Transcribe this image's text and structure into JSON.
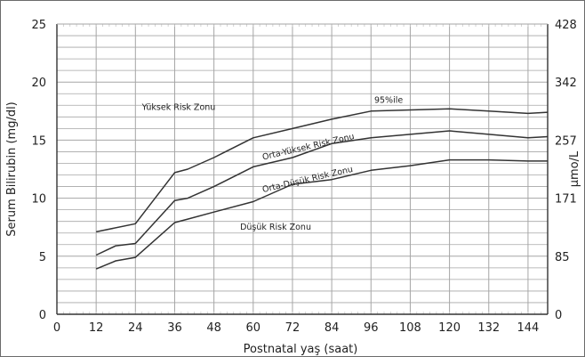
{
  "chart_data": {
    "type": "line",
    "xlabel": "Postnatal yaş (saat)",
    "ylabel": "Serum Bilirubin (mg/dl)",
    "y2label": "μmo/L",
    "xlim": [
      0,
      150
    ],
    "ylim": [
      0,
      25
    ],
    "x_ticks": [
      "0",
      "12",
      "24",
      "36",
      "48",
      "60",
      "72",
      "84",
      "96",
      "108",
      "120",
      "132",
      "144"
    ],
    "y_ticks": [
      "0",
      "5",
      "10",
      "15",
      "20",
      "25"
    ],
    "y2_ticks": [
      "0",
      "85",
      "171",
      "257",
      "342",
      "428"
    ],
    "grid": true,
    "series": [
      {
        "name": "95%ile",
        "x": [
          12,
          24,
          36,
          40,
          48,
          60,
          72,
          84,
          96,
          108,
          120,
          132,
          144,
          150
        ],
        "y": [
          7.1,
          7.8,
          12.2,
          12.5,
          13.5,
          15.2,
          16.0,
          16.8,
          17.5,
          17.6,
          17.7,
          17.5,
          17.3,
          17.4
        ]
      },
      {
        "name": "Orta-Yüksek Risk Zonu",
        "x": [
          12,
          18,
          24,
          36,
          40,
          48,
          60,
          72,
          84,
          96,
          108,
          120,
          132,
          144,
          150
        ],
        "y": [
          5.1,
          5.9,
          6.1,
          9.8,
          10.0,
          11.0,
          12.7,
          13.5,
          14.7,
          15.2,
          15.5,
          15.8,
          15.5,
          15.2,
          15.3
        ]
      },
      {
        "name": "Orta-Düşük Risk Zonu",
        "x": [
          12,
          18,
          24,
          36,
          40,
          48,
          60,
          72,
          84,
          96,
          108,
          120,
          132,
          144,
          150
        ],
        "y": [
          3.9,
          4.6,
          4.9,
          7.9,
          8.2,
          8.8,
          9.7,
          11.2,
          11.6,
          12.4,
          12.8,
          13.3,
          13.3,
          13.2,
          13.2
        ]
      }
    ],
    "annotations": [
      {
        "text": "Yüksek Risk Zonu",
        "x": 26,
        "y": 17.6
      },
      {
        "text": "95%ile",
        "x": 97,
        "y": 18.2
      },
      {
        "text": "Orta-Yüksek Risk Zonu",
        "x": 63,
        "y": 13.3
      },
      {
        "text": "Orta-Düşük Risk Zonu",
        "x": 63,
        "y": 10.5
      },
      {
        "text": "Düşük Risk Zonu",
        "x": 56,
        "y": 7.3
      }
    ],
    "colors": {
      "line": "#333333",
      "grid": "#a6a6a6",
      "minor_tick": "#c8c8c8",
      "axis": "#333333"
    }
  }
}
